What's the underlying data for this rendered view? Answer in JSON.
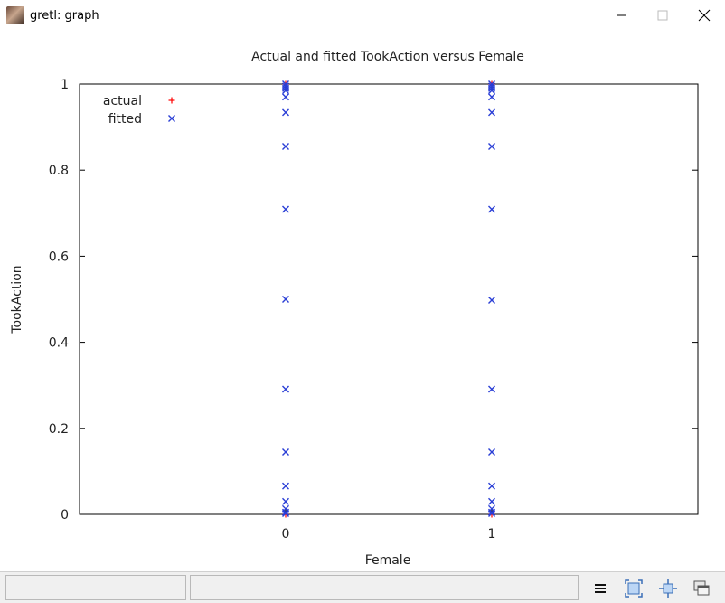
{
  "window": {
    "title": "gretl: graph"
  },
  "chart_data": {
    "type": "scatter",
    "title": "Actual and fitted TookAction versus Female",
    "xlabel": "Female",
    "ylabel": "TookAction",
    "xlim": [
      -1,
      2
    ],
    "ylim": [
      0,
      1
    ],
    "xticks": [
      "0",
      "1"
    ],
    "yticks": [
      "0",
      "0.2",
      "0.4",
      "0.6",
      "0.8",
      "1"
    ],
    "grid": false,
    "legend_position": "top-left",
    "series": [
      {
        "name": "actual",
        "marker": "+",
        "color": "#ff0000",
        "points": [
          [
            0,
            0
          ],
          [
            0,
            1
          ],
          [
            1,
            0
          ],
          [
            1,
            1
          ]
        ]
      },
      {
        "name": "fitted",
        "marker": "x",
        "color": "#2b3fd6",
        "points": [
          [
            0,
            1.0
          ],
          [
            0,
            0.995
          ],
          [
            0,
            0.99
          ],
          [
            0,
            0.985
          ],
          [
            0,
            0.97
          ],
          [
            0,
            0.934
          ],
          [
            0,
            0.855
          ],
          [
            0,
            0.709
          ],
          [
            0,
            0.5
          ],
          [
            0,
            0.291
          ],
          [
            0,
            0.145
          ],
          [
            0,
            0.066
          ],
          [
            0,
            0.03
          ],
          [
            0,
            0.013
          ],
          [
            0,
            0.005
          ],
          [
            0,
            0.002
          ],
          [
            1,
            1.0
          ],
          [
            1,
            0.995
          ],
          [
            1,
            0.99
          ],
          [
            1,
            0.985
          ],
          [
            1,
            0.97
          ],
          [
            1,
            0.934
          ],
          [
            1,
            0.855
          ],
          [
            1,
            0.709
          ],
          [
            1,
            0.498
          ],
          [
            1,
            0.291
          ],
          [
            1,
            0.145
          ],
          [
            1,
            0.066
          ],
          [
            1,
            0.03
          ],
          [
            1,
            0.013
          ],
          [
            1,
            0.005
          ],
          [
            1,
            0.002
          ]
        ]
      }
    ]
  },
  "toolbar": {
    "icons": [
      "menu-icon",
      "zoom-icon",
      "fit-icon",
      "windows-icon"
    ]
  }
}
